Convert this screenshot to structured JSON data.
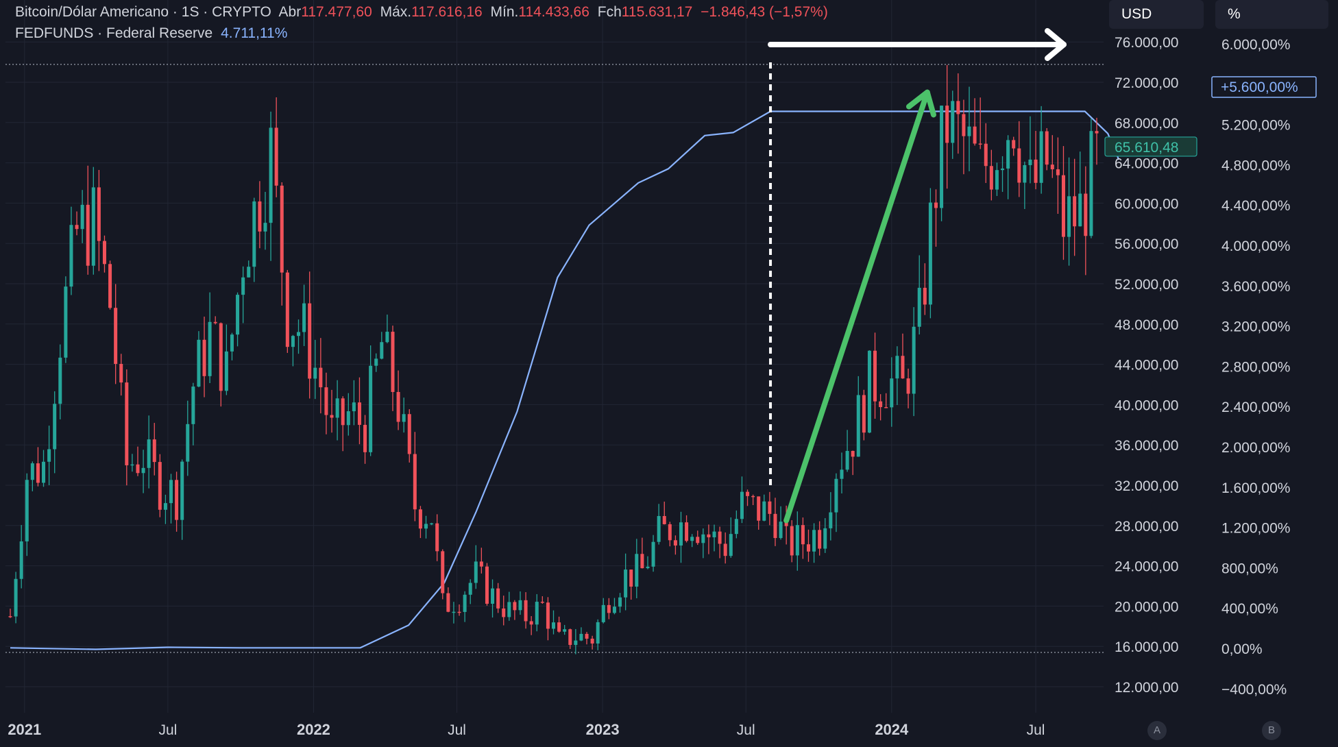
{
  "legend": {
    "symbol": "Bitcoin/Dólar Americano · 1S · CRYPTO",
    "open_label": "Abr",
    "open": "117.477,60",
    "high_label": "Máx.",
    "high": "117.616,16",
    "low_label": "Mín.",
    "low": "114.433,66",
    "close_label": "Fch",
    "close": "115.631,17",
    "change": "−1.846,43 (−1,57%)",
    "fed_symbol": "FEDFUNDS · Federal Reserve",
    "fed_value": "4.711,11%"
  },
  "units": {
    "left": "USD",
    "right": "%"
  },
  "scale_buttons": [
    "A",
    "B"
  ],
  "colors": {
    "background": "#151823",
    "up": "#26a69a",
    "down": "#f0525a",
    "fed_line": "#8ab4ff",
    "arrow_green": "#4cc26a",
    "arrow_white": "#ffffff"
  },
  "chart_data": {
    "type": "candlestick",
    "x_axis": {
      "range": [
        "2020-12-14",
        "2024-09-16"
      ],
      "ticks": [
        {
          "date": "2021-01-01",
          "label": "2021",
          "bold": true
        },
        {
          "date": "2021-07-01",
          "label": "Jul",
          "bold": false
        },
        {
          "date": "2022-01-01",
          "label": "2022",
          "bold": true
        },
        {
          "date": "2022-07-01",
          "label": "Jul",
          "bold": false
        },
        {
          "date": "2023-01-01",
          "label": "2023",
          "bold": true
        },
        {
          "date": "2023-07-01",
          "label": "Jul",
          "bold": false
        },
        {
          "date": "2024-01-01",
          "label": "2024",
          "bold": true
        },
        {
          "date": "2024-07-01",
          "label": "Jul",
          "bold": false
        }
      ]
    },
    "y_axis_left": {
      "unit": "USD",
      "range": [
        8000,
        80000
      ],
      "ticks": [
        12000,
        16000,
        20000,
        24000,
        28000,
        32000,
        36000,
        40000,
        44000,
        48000,
        52000,
        56000,
        60000,
        64000,
        68000,
        72000,
        76000
      ],
      "tick_labels": [
        "12.000,00",
        "16.000,00",
        "20.000,00",
        "24.000,00",
        "28.000,00",
        "32.000,00",
        "36.000,00",
        "40.000,00",
        "44.000,00",
        "48.000,00",
        "52.000,00",
        "56.000,00",
        "60.000,00",
        "64.000,00",
        "68.000,00",
        "72.000,00",
        "76.000,00"
      ],
      "last_price": 65610.48,
      "last_price_label": "65.610,48"
    },
    "y_axis_right": {
      "unit": "%",
      "ticks": [
        -400,
        0,
        400,
        800,
        1200,
        1600,
        2000,
        2400,
        2800,
        3200,
        3600,
        4000,
        4400,
        4800,
        5200,
        5600,
        6000
      ],
      "tick_labels": [
        "−400,00%",
        "0,00%",
        "400,00%",
        "800,00%",
        "1.200,00%",
        "1.600,00%",
        "2.000,00%",
        "2.400,00%",
        "2.800,00%",
        "3.200,00%",
        "3.600,00%",
        "4.000,00%",
        "4.400,00%",
        "4.800,00%",
        "5.200,00%",
        "5.600,00%",
        "6.000,00%"
      ],
      "current_label": "+5.600,00%"
    },
    "series": [
      {
        "kind": "candles",
        "points": [
          {
            "date": "2020-12-14",
            "close": 19000
          },
          {
            "date": "2021-01-04",
            "close": 33000
          },
          {
            "date": "2021-01-25",
            "close": 34000
          },
          {
            "date": "2021-02-15",
            "close": 47000
          },
          {
            "date": "2021-03-08",
            "close": 57000
          },
          {
            "date": "2021-03-29",
            "close": 58000
          },
          {
            "date": "2021-04-19",
            "close": 50000
          },
          {
            "date": "2021-05-10",
            "close": 34000
          },
          {
            "date": "2021-05-31",
            "close": 35000
          },
          {
            "date": "2021-06-21",
            "close": 32000
          },
          {
            "date": "2021-07-12",
            "close": 31000
          },
          {
            "date": "2021-08-02",
            "close": 42000
          },
          {
            "date": "2021-08-23",
            "close": 47000
          },
          {
            "date": "2021-09-13",
            "close": 43000
          },
          {
            "date": "2021-10-04",
            "close": 55000
          },
          {
            "date": "2021-10-25",
            "close": 61000
          },
          {
            "date": "2021-11-08",
            "close": 65000
          },
          {
            "date": "2021-11-29",
            "close": 49000
          },
          {
            "date": "2021-12-20",
            "close": 47000
          },
          {
            "date": "2022-01-10",
            "close": 42000
          },
          {
            "date": "2022-01-24",
            "close": 37000
          },
          {
            "date": "2022-02-14",
            "close": 39000
          },
          {
            "date": "2022-03-07",
            "close": 38000
          },
          {
            "date": "2022-03-28",
            "close": 46000
          },
          {
            "date": "2022-04-18",
            "close": 40000
          },
          {
            "date": "2022-05-09",
            "close": 30000
          },
          {
            "date": "2022-05-30",
            "close": 29000
          },
          {
            "date": "2022-06-13",
            "close": 20000
          },
          {
            "date": "2022-07-04",
            "close": 21000
          },
          {
            "date": "2022-07-25",
            "close": 23000
          },
          {
            "date": "2022-08-15",
            "close": 21000
          },
          {
            "date": "2022-09-05",
            "close": 19500
          },
          {
            "date": "2022-09-26",
            "close": 19000
          },
          {
            "date": "2022-10-17",
            "close": 20000
          },
          {
            "date": "2022-11-07",
            "close": 16500
          },
          {
            "date": "2022-11-28",
            "close": 17000
          },
          {
            "date": "2022-12-19",
            "close": 16800
          },
          {
            "date": "2023-01-09",
            "close": 21000
          },
          {
            "date": "2023-01-30",
            "close": 23000
          },
          {
            "date": "2023-02-20",
            "close": 23500
          },
          {
            "date": "2023-03-13",
            "close": 27000
          },
          {
            "date": "2023-04-03",
            "close": 28000
          },
          {
            "date": "2023-04-24",
            "close": 28500
          },
          {
            "date": "2023-05-15",
            "close": 27000
          },
          {
            "date": "2023-06-05",
            "close": 26000
          },
          {
            "date": "2023-06-26",
            "close": 30000
          },
          {
            "date": "2023-07-17",
            "close": 29500
          },
          {
            "date": "2023-08-07",
            "close": 29000
          },
          {
            "date": "2023-08-21",
            "close": 26000
          },
          {
            "date": "2023-09-11",
            "close": 26500
          },
          {
            "date": "2023-10-02",
            "close": 27500
          },
          {
            "date": "2023-10-23",
            "close": 34000
          },
          {
            "date": "2023-11-13",
            "close": 37000
          },
          {
            "date": "2023-12-04",
            "close": 42000
          },
          {
            "date": "2023-12-25",
            "close": 42500
          },
          {
            "date": "2024-01-15",
            "close": 41500
          },
          {
            "date": "2024-02-05",
            "close": 48000
          },
          {
            "date": "2024-02-26",
            "close": 62000
          },
          {
            "date": "2024-03-11",
            "close": 68000
          },
          {
            "date": "2024-04-01",
            "close": 66000
          },
          {
            "date": "2024-04-22",
            "close": 63000
          },
          {
            "date": "2024-05-13",
            "close": 66000
          },
          {
            "date": "2024-06-03",
            "close": 69000
          },
          {
            "date": "2024-06-24",
            "close": 61000
          },
          {
            "date": "2024-07-15",
            "close": 64000
          },
          {
            "date": "2024-08-05",
            "close": 58000
          },
          {
            "date": "2024-08-26",
            "close": 59000
          },
          {
            "date": "2024-09-16",
            "close": 64000
          }
        ]
      },
      {
        "kind": "line",
        "axis": "right",
        "points": [
          {
            "date": "2020-12-14",
            "value": 5
          },
          {
            "date": "2021-04-01",
            "value": -10
          },
          {
            "date": "2021-07-01",
            "value": 10
          },
          {
            "date": "2021-10-01",
            "value": 5
          },
          {
            "date": "2022-03-01",
            "value": 5
          },
          {
            "date": "2022-05-01",
            "value": 230
          },
          {
            "date": "2022-06-15",
            "value": 650
          },
          {
            "date": "2022-07-25",
            "value": 1350
          },
          {
            "date": "2022-09-15",
            "value": 2350
          },
          {
            "date": "2022-11-05",
            "value": 3680
          },
          {
            "date": "2022-12-15",
            "value": 4200
          },
          {
            "date": "2023-02-15",
            "value": 4620
          },
          {
            "date": "2023-03-25",
            "value": 4760
          },
          {
            "date": "2023-05-10",
            "value": 5090
          },
          {
            "date": "2023-06-15",
            "value": 5120
          },
          {
            "date": "2023-08-01",
            "value": 5330
          },
          {
            "date": "2024-09-01",
            "value": 5330
          },
          {
            "date": "2024-09-30",
            "value": 5110
          },
          {
            "date": "2024-10-14",
            "value": 4850
          }
        ]
      }
    ],
    "annotations": [
      {
        "type": "dashed-vertical",
        "date": "2023-08-01",
        "from": 32000,
        "to": 74200,
        "color": "#ffffff"
      },
      {
        "type": "arrow",
        "from": {
          "date": "2023-08-21",
          "price": 28500
        },
        "to": {
          "date": "2024-02-15",
          "price": 71000
        },
        "color": "#4cc26a"
      },
      {
        "type": "arrow",
        "from": {
          "date": "2023-08-01",
          "price": 76800
        },
        "to": {
          "date": "2024-09-01",
          "price": 76800
        },
        "color": "#ffffff"
      }
    ],
    "grid": true
  }
}
